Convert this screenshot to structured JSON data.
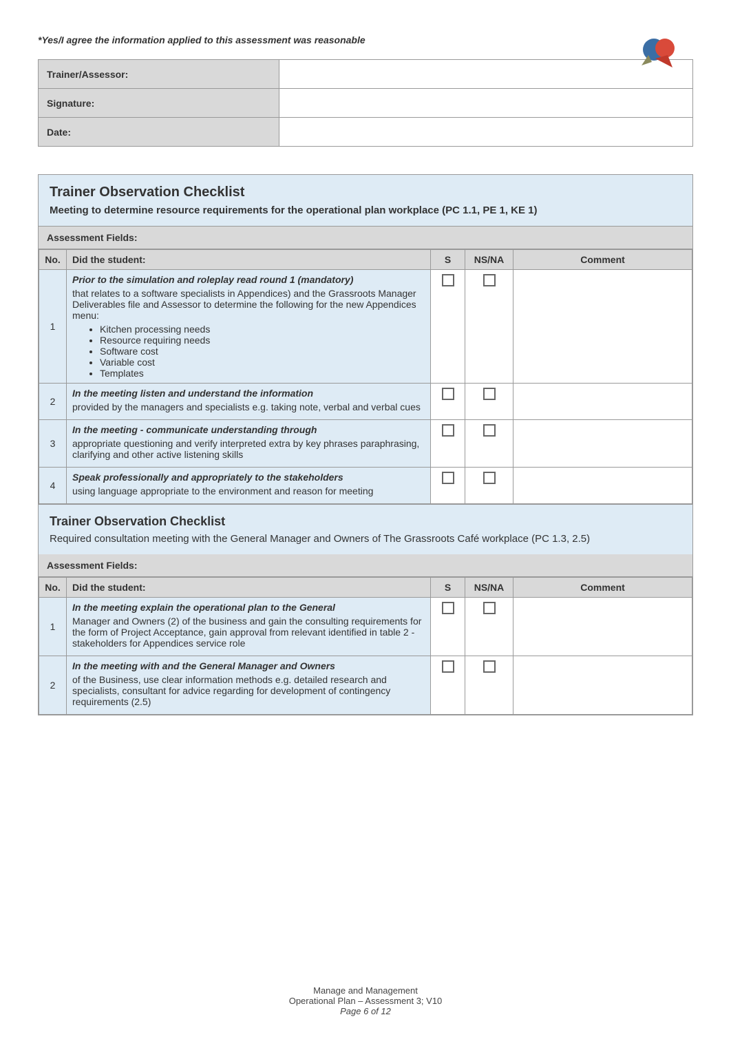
{
  "declaration": "*Yes/I agree the information applied to this assessment was reasonable",
  "sig_table": {
    "rows": [
      {
        "label": "Trainer/Assessor:",
        "value": ""
      },
      {
        "label": "Signature:",
        "value": ""
      },
      {
        "label": "Date:",
        "value": ""
      }
    ]
  },
  "section1": {
    "title": "Trainer Observation Checklist",
    "subtitle": "Meeting to determine resource requirements for the operational plan workplace (PC 1.1, PE 1, KE 1)",
    "fields_label": "Assessment Fields:",
    "cols": {
      "no": "No.",
      "task": "Did the student:",
      "s": "S",
      "ns": "NS/NA",
      "comment": "Comment"
    },
    "rows": [
      {
        "no": "1",
        "head": "Prior to the simulation and roleplay read round 1 (mandatory)",
        "body": "that relates to a software specialists in Appendices) and the Grassroots Manager Deliverables file and Assessor to determine the following for the new Appendices menu:",
        "bullets": [
          "Kitchen processing needs",
          "Resource requiring needs",
          "Software cost",
          "Variable cost",
          "Templates"
        ]
      },
      {
        "no": "2",
        "head": "In the meeting listen and understand the information",
        "body": "provided by the managers and specialists e.g. taking note, verbal and verbal cues"
      },
      {
        "no": "3",
        "head": "In the meeting - communicate understanding through",
        "body": "appropriate questioning and verify interpreted extra by key phrases paraphrasing, clarifying and other active listening skills"
      },
      {
        "no": "4",
        "head": "Speak professionally and appropriately to the stakeholders",
        "body": "using language appropriate to the environment and reason for meeting"
      }
    ]
  },
  "section2": {
    "title": "Trainer Observation Checklist",
    "subtitle": "Required consultation meeting with the General Manager and Owners of The Grassroots Café workplace (PC 1.3, 2.5)",
    "fields_label": "Assessment Fields:",
    "cols": {
      "no": "No.",
      "task": "Did the student:",
      "s": "S",
      "ns": "NS/NA",
      "comment": "Comment"
    },
    "rows": [
      {
        "no": "1",
        "head": "In the meeting explain the operational plan to the General",
        "body": "Manager and Owners (2) of the business and gain the consulting requirements for the form of Project Acceptance, gain approval from relevant identified in table 2 - stakeholders for Appendices service role"
      },
      {
        "no": "2",
        "head": "In the meeting with and the General Manager and Owners",
        "body": "of the Business, use clear information methods e.g. detailed research and specialists, consultant for advice regarding for development of contingency requirements (2.5)"
      }
    ]
  },
  "footer": {
    "line1": "Manage and Management",
    "line2": "Operational Plan – Assessment 3; V10",
    "page": "Page 6 of 12"
  },
  "colors": {
    "header_bg": "#deebf5",
    "grey_bg": "#d9d9d9",
    "border": "#999999"
  }
}
